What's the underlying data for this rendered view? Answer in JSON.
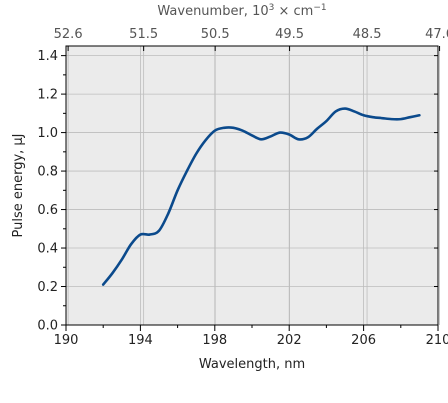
{
  "chart_data": {
    "type": "line",
    "title": "",
    "xlabel": "Wavelength, nm",
    "ylabel": "Pulse energy, μJ",
    "top_xlabel": {
      "prefix": "Wavenumber, 10",
      "sup1": "3",
      "mid": " × cm",
      "sup2": "−1"
    },
    "xlim": [
      190,
      210
    ],
    "ylim": [
      0.0,
      1.45
    ],
    "x_ticks": [
      190,
      194,
      198,
      202,
      206,
      210
    ],
    "x_tick_labels": [
      "190",
      "194",
      "198",
      "202",
      "206",
      "210"
    ],
    "x_minor_ticks": [
      192,
      196,
      200,
      204,
      208
    ],
    "y_ticks": [
      0.0,
      0.2,
      0.4,
      0.6,
      0.8,
      1.0,
      1.2,
      1.4
    ],
    "y_tick_labels": [
      "0.0",
      "0.2",
      "0.4",
      "0.6",
      "0.8",
      "1.0",
      "1.2",
      "1.4"
    ],
    "top_ticks": [
      {
        "wavenumber": 52.6,
        "label": "52.6"
      },
      {
        "wavenumber": 51.5,
        "label": "51.5"
      },
      {
        "wavenumber": 50.5,
        "label": "50.5"
      },
      {
        "wavenumber": 49.5,
        "label": "49.5"
      },
      {
        "wavenumber": 48.5,
        "label": "48.5"
      },
      {
        "wavenumber": 47.6,
        "label": "47.6"
      }
    ],
    "grid": true,
    "series": [
      {
        "color": "#0b4a8c",
        "x": [
          192,
          192.5,
          193,
          193.5,
          194,
          194.5,
          195,
          195.5,
          196,
          196.5,
          197,
          197.5,
          198,
          198.5,
          199,
          199.5,
          200,
          200.5,
          201,
          201.5,
          202,
          202.5,
          203,
          203.5,
          204,
          204.5,
          205,
          205.5,
          206,
          206.5,
          207,
          207.5,
          208,
          208.5,
          209
        ],
        "y": [
          0.21,
          0.27,
          0.34,
          0.42,
          0.47,
          0.47,
          0.49,
          0.58,
          0.7,
          0.8,
          0.89,
          0.96,
          1.01,
          1.025,
          1.025,
          1.01,
          0.985,
          0.965,
          0.98,
          1.0,
          0.99,
          0.965,
          0.975,
          1.02,
          1.06,
          1.11,
          1.125,
          1.11,
          1.09,
          1.08,
          1.075,
          1.07,
          1.07,
          1.08,
          1.09
        ]
      }
    ]
  },
  "colors": {
    "plot_background": "#ebebeb",
    "grid": "#bdbdbd",
    "line": "#0b4a8c",
    "axis": "#000000"
  }
}
